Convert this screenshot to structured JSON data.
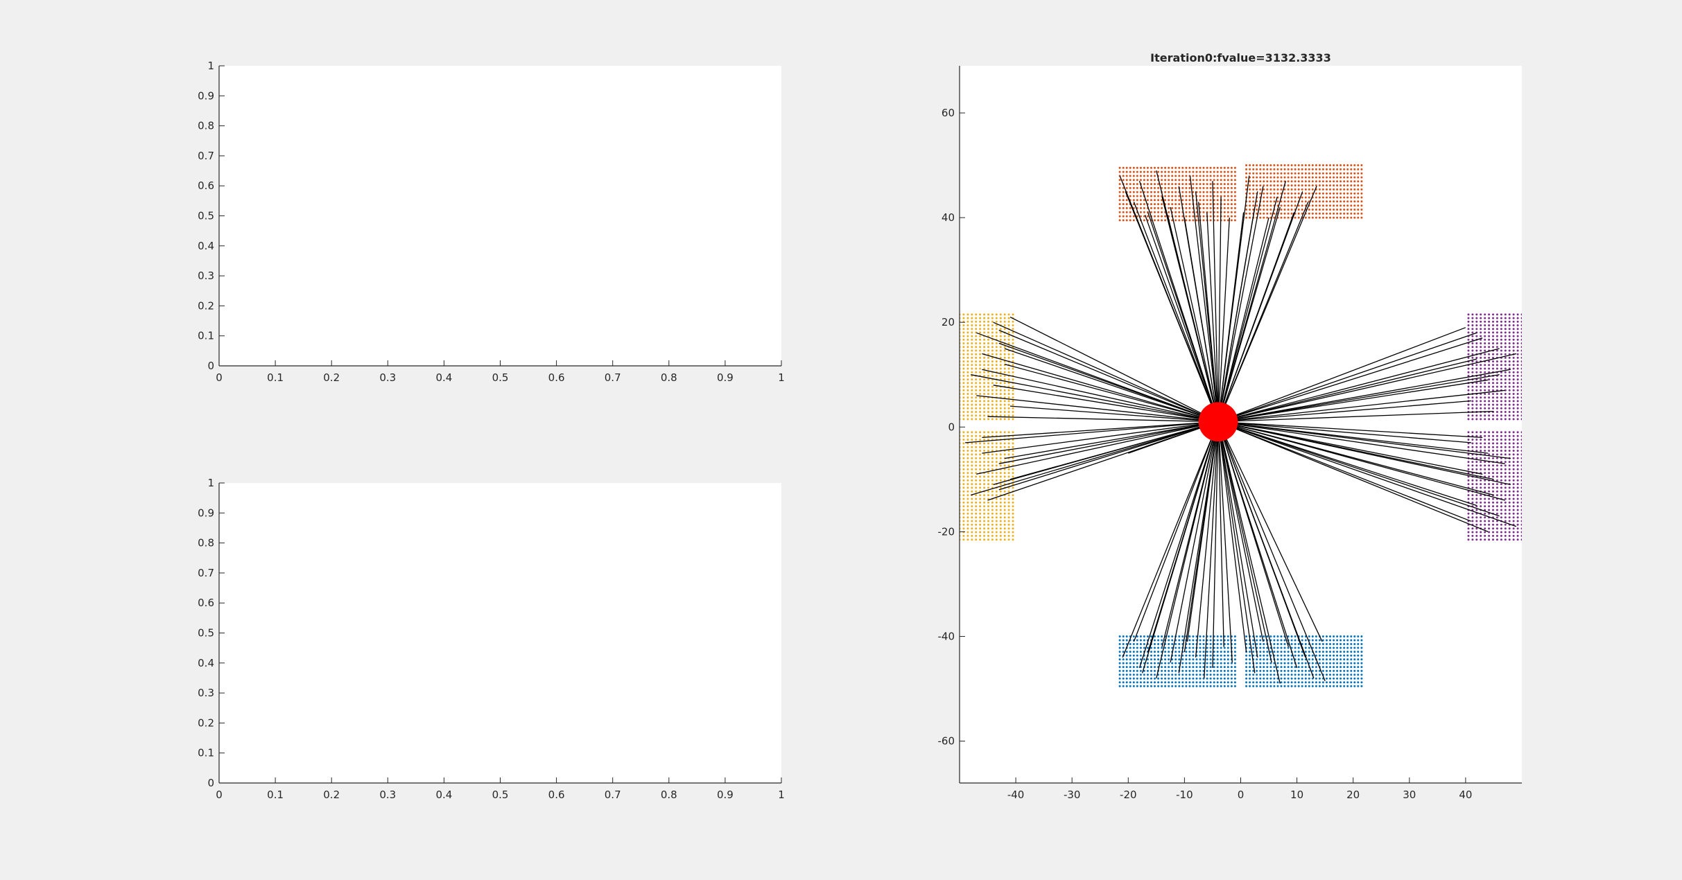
{
  "figure": {
    "background": "#f0f0f0"
  },
  "chart_data": [
    {
      "type": "line",
      "title": "",
      "xlabel": "",
      "ylabel": "",
      "xlim": [
        0,
        1
      ],
      "ylim": [
        0,
        1
      ],
      "x_ticks": [
        0,
        0.1,
        0.2,
        0.3,
        0.4,
        0.5,
        0.6,
        0.7,
        0.8,
        0.9,
        1
      ],
      "y_ticks": [
        0,
        0.1,
        0.2,
        0.3,
        0.4,
        0.5,
        0.6,
        0.7,
        0.8,
        0.9,
        1
      ],
      "x_tick_labels": [
        "0",
        "0.1",
        "0.2",
        "0.3",
        "0.4",
        "0.5",
        "0.6",
        "0.7",
        "0.8",
        "0.9",
        "1"
      ],
      "y_tick_labels": [
        "0",
        "0.1",
        "0.2",
        "0.3",
        "0.4",
        "0.5",
        "0.6",
        "0.7",
        "0.8",
        "0.9",
        "1"
      ],
      "grid": false,
      "series": []
    },
    {
      "type": "line",
      "title": "",
      "xlabel": "",
      "ylabel": "",
      "xlim": [
        0,
        1
      ],
      "ylim": [
        0,
        1
      ],
      "x_ticks": [
        0,
        0.1,
        0.2,
        0.3,
        0.4,
        0.5,
        0.6,
        0.7,
        0.8,
        0.9,
        1
      ],
      "y_ticks": [
        0,
        0.1,
        0.2,
        0.3,
        0.4,
        0.5,
        0.6,
        0.7,
        0.8,
        0.9,
        1
      ],
      "x_tick_labels": [
        "0",
        "0.1",
        "0.2",
        "0.3",
        "0.4",
        "0.5",
        "0.6",
        "0.7",
        "0.8",
        "0.9",
        "1"
      ],
      "y_tick_labels": [
        "0",
        "0.1",
        "0.2",
        "0.3",
        "0.4",
        "0.5",
        "0.6",
        "0.7",
        "0.8",
        "0.9",
        "1"
      ],
      "grid": false,
      "series": []
    },
    {
      "type": "scatter",
      "title": "Iteration0:fvalue=3132.3333",
      "xlabel": "",
      "ylabel": "",
      "xlim": [
        -50,
        50
      ],
      "ylim": [
        -68,
        69
      ],
      "x_ticks": [
        -40,
        -30,
        -20,
        -10,
        0,
        10,
        20,
        30,
        40
      ],
      "y_ticks": [
        -60,
        -40,
        -20,
        0,
        20,
        40,
        60
      ],
      "x_tick_labels": [
        "-40",
        "-30",
        "-20",
        "-10",
        "0",
        "10",
        "20",
        "30",
        "40"
      ],
      "y_tick_labels": [
        "-60",
        "-40",
        "-20",
        "0",
        "20",
        "40",
        "60"
      ],
      "grid": false,
      "hub": {
        "x": -4,
        "y": 1,
        "radius": 3.5,
        "color": "#ff0000"
      },
      "point_groups": [
        {
          "color": "#d95319",
          "xrange": [
            -21.5,
            -1
          ],
          "yrange": [
            39.5,
            49.5
          ],
          "columns": 34,
          "rows": 14
        },
        {
          "color": "#d95319",
          "xrange": [
            1,
            21.5
          ],
          "yrange": [
            40,
            50
          ],
          "columns": 34,
          "rows": 14
        },
        {
          "color": "#0072bd",
          "xrange": [
            -21.5,
            -1
          ],
          "yrange": [
            -49.5,
            -40
          ],
          "columns": 34,
          "rows": 14
        },
        {
          "color": "#0072bd",
          "xrange": [
            1,
            21.5
          ],
          "yrange": [
            -49.5,
            -40
          ],
          "columns": 34,
          "rows": 14
        },
        {
          "color": "#edb120",
          "xrange": [
            -50,
            -40.5
          ],
          "yrange": [
            1.5,
            21.5
          ],
          "columns": 14,
          "rows": 30
        },
        {
          "color": "#edb120",
          "xrange": [
            -50,
            -40.5
          ],
          "yrange": [
            -21.5,
            -1
          ],
          "columns": 14,
          "rows": 30
        },
        {
          "color": "#7e2f8e",
          "xrange": [
            40.5,
            50
          ],
          "yrange": [
            1.5,
            21.5
          ],
          "columns": 14,
          "rows": 30
        },
        {
          "color": "#7e2f8e",
          "xrange": [
            40.5,
            50
          ],
          "yrange": [
            -21.5,
            -1
          ],
          "columns": 14,
          "rows": 30
        }
      ],
      "line_color": "#000000",
      "segments": [
        [
          -4,
          1,
          -21.5,
          48
        ],
        [
          -4,
          1,
          -20.5,
          45
        ],
        [
          -4,
          1,
          -19,
          43
        ],
        [
          -4,
          1,
          -18,
          47
        ],
        [
          -4,
          1,
          -16.5,
          41
        ],
        [
          -4,
          1,
          -15,
          49
        ],
        [
          -4,
          1,
          -14,
          44
        ],
        [
          -4,
          1,
          -12.5,
          42
        ],
        [
          -4,
          1,
          -11,
          46
        ],
        [
          -4,
          1,
          -10,
          40
        ],
        [
          -4,
          1,
          -9,
          48
        ],
        [
          -4,
          1,
          -7.5,
          43
        ],
        [
          -4,
          1,
          -6,
          41
        ],
        [
          -4,
          1,
          -5,
          47
        ],
        [
          -4,
          1,
          -3.5,
          44
        ],
        [
          -4,
          1,
          -2,
          40
        ],
        [
          -4,
          1,
          1.5,
          48
        ],
        [
          -4,
          1,
          2.5,
          42
        ],
        [
          -4,
          1,
          4,
          46
        ],
        [
          -4,
          1,
          5,
          40
        ],
        [
          -4,
          1,
          6.5,
          44
        ],
        [
          -4,
          1,
          8,
          47
        ],
        [
          -4,
          1,
          9.5,
          41
        ],
        [
          -4,
          1,
          11,
          45
        ],
        [
          -4,
          1,
          12,
          43
        ],
        [
          -4,
          1,
          13.5,
          46
        ],
        [
          -4,
          1,
          -17,
          40.5
        ],
        [
          -4,
          1,
          -13,
          40.5
        ],
        [
          -4,
          1,
          0.5,
          41
        ],
        [
          -4,
          1,
          3,
          45
        ],
        [
          -4,
          1,
          -8,
          45
        ],
        [
          -4,
          1,
          7,
          42
        ],
        [
          -4,
          1,
          -21,
          -44
        ],
        [
          -4,
          1,
          -19,
          -41
        ],
        [
          -4,
          1,
          -18,
          -46
        ],
        [
          -4,
          1,
          -16.5,
          -43
        ],
        [
          -4,
          1,
          -15,
          -48
        ],
        [
          -4,
          1,
          -14,
          -42
        ],
        [
          -4,
          1,
          -12.5,
          -45
        ],
        [
          -4,
          1,
          -11,
          -47
        ],
        [
          -4,
          1,
          -9.5,
          -41
        ],
        [
          -4,
          1,
          -8,
          -44
        ],
        [
          -4,
          1,
          -6.5,
          -48
        ],
        [
          -4,
          1,
          -5,
          -46
        ],
        [
          -4,
          1,
          -3,
          -42
        ],
        [
          -4,
          1,
          -1.5,
          -45
        ],
        [
          -4,
          1,
          1,
          -43
        ],
        [
          -4,
          1,
          2.5,
          -47
        ],
        [
          -4,
          1,
          4,
          -41
        ],
        [
          -4,
          1,
          5.5,
          -45
        ],
        [
          -4,
          1,
          7,
          -49
        ],
        [
          -4,
          1,
          8.5,
          -42
        ],
        [
          -4,
          1,
          10,
          -46
        ],
        [
          -4,
          1,
          11.5,
          -44
        ],
        [
          -4,
          1,
          13,
          -48
        ],
        [
          -4,
          1,
          14.5,
          -41
        ],
        [
          -4,
          1,
          15,
          -48.5
        ],
        [
          -4,
          1,
          -17.5,
          -47
        ],
        [
          -4,
          1,
          -10,
          -43
        ],
        [
          -4,
          1,
          3,
          -44
        ],
        [
          -4,
          1,
          -41,
          21
        ],
        [
          -4,
          1,
          -44,
          20
        ],
        [
          -4,
          1,
          -47,
          18
        ],
        [
          -4,
          1,
          -43,
          16
        ],
        [
          -4,
          1,
          -46,
          14
        ],
        [
          -4,
          1,
          -42,
          12
        ],
        [
          -4,
          1,
          -48,
          10
        ],
        [
          -4,
          1,
          -44,
          8
        ],
        [
          -4,
          1,
          -47,
          6
        ],
        [
          -4,
          1,
          -41,
          4
        ],
        [
          -4,
          1,
          -45,
          2
        ],
        [
          -4,
          1,
          -43,
          18.5
        ],
        [
          -4,
          1,
          -46,
          11
        ],
        [
          -4,
          1,
          -42,
          15
        ],
        [
          -4,
          1,
          -49,
          -3
        ],
        [
          -4,
          1,
          -46,
          -5
        ],
        [
          -4,
          1,
          -43,
          -7
        ],
        [
          -4,
          1,
          -47,
          -9
        ],
        [
          -4,
          1,
          -44,
          -11
        ],
        [
          -4,
          1,
          -48,
          -13
        ],
        [
          -4,
          1,
          -42,
          -6
        ],
        [
          -4,
          1,
          -45,
          -14
        ],
        [
          -4,
          1,
          -41,
          -10
        ],
        [
          -4,
          1,
          -20,
          -5
        ],
        [
          -4,
          1,
          -46,
          -2
        ],
        [
          -4,
          1,
          -43,
          -12
        ],
        [
          -4,
          1,
          40,
          19
        ],
        [
          -4,
          1,
          43,
          17
        ],
        [
          -4,
          1,
          46,
          15
        ],
        [
          -4,
          1,
          42,
          13
        ],
        [
          -4,
          1,
          48,
          11
        ],
        [
          -4,
          1,
          44,
          9
        ],
        [
          -4,
          1,
          47,
          7
        ],
        [
          -4,
          1,
          41,
          5
        ],
        [
          -4,
          1,
          45,
          3
        ],
        [
          -4,
          1,
          49,
          14
        ],
        [
          -4,
          1,
          42,
          18
        ],
        [
          -4,
          1,
          46,
          10
        ],
        [
          -4,
          1,
          41,
          -3
        ],
        [
          -4,
          1,
          44,
          -5
        ],
        [
          -4,
          1,
          47,
          -7
        ],
        [
          -4,
          1,
          43,
          -9
        ],
        [
          -4,
          1,
          48,
          -11
        ],
        [
          -4,
          1,
          45,
          -13
        ],
        [
          -4,
          1,
          42,
          -15
        ],
        [
          -4,
          1,
          46,
          -17
        ],
        [
          -4,
          1,
          49,
          -19
        ],
        [
          -4,
          1,
          44,
          -20
        ],
        [
          -4,
          1,
          47,
          -14
        ],
        [
          -4,
          1,
          43,
          -2
        ],
        [
          -4,
          1,
          48,
          -6
        ],
        [
          -4,
          1,
          41,
          -18
        ],
        [
          -4,
          1,
          45,
          -10
        ]
      ]
    }
  ]
}
